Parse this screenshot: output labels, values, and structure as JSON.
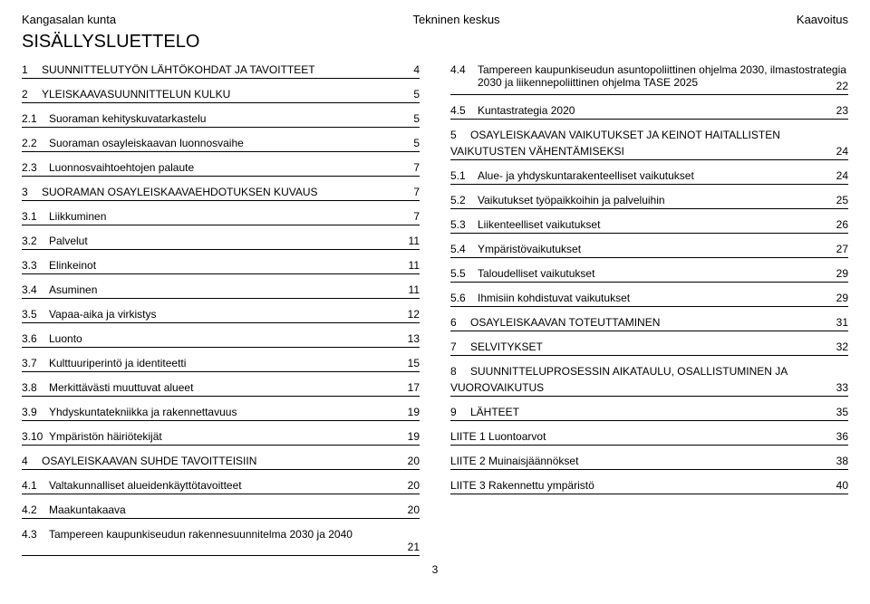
{
  "header": {
    "left": "Kangasalan kunta",
    "center": "Tekninen keskus",
    "right": "Kaavoitus"
  },
  "title": "SISÄLLYSLUETTELO",
  "page_number": "3",
  "left": [
    {
      "n": "1",
      "label": "SUUNNITTELUTYÖN LÄHTÖKOHDAT JA TAVOITTEET",
      "p": "4"
    },
    {
      "n": "2",
      "label": "YLEISKAAVASUUNNITTELUN KULKU",
      "p": "5"
    },
    {
      "n": "2.1",
      "label": "Suoraman kehityskuvatarkastelu",
      "p": "5",
      "sub": true
    },
    {
      "n": "2.2",
      "label": "Suoraman osayleiskaavan luonnosvaihe",
      "p": "5",
      "sub": true
    },
    {
      "n": "2.3",
      "label": "Luonnosvaihtoehtojen palaute",
      "p": "7",
      "sub": true
    },
    {
      "n": "3",
      "label": "SUORAMAN OSAYLEISKAAVAEHDOTUKSEN KUVAUS",
      "p": "7"
    },
    {
      "n": "3.1",
      "label": "Liikkuminen",
      "p": "7",
      "sub": true
    },
    {
      "n": "3.2",
      "label": "Palvelut",
      "p": "11",
      "sub": true
    },
    {
      "n": "3.3",
      "label": "Elinkeinot",
      "p": "11",
      "sub": true
    },
    {
      "n": "3.4",
      "label": "Asuminen",
      "p": "11",
      "sub": true
    },
    {
      "n": "3.5",
      "label": "Vapaa-aika ja virkistys",
      "p": "12",
      "sub": true
    },
    {
      "n": "3.6",
      "label": "Luonto",
      "p": "13",
      "sub": true
    },
    {
      "n": "3.7",
      "label": "Kulttuuriperintö ja identiteetti",
      "p": "15",
      "sub": true
    },
    {
      "n": "3.8",
      "label": "Merkittävästi muuttuvat alueet",
      "p": "17",
      "sub": true
    },
    {
      "n": "3.9",
      "label": "Yhdyskuntatekniikka ja rakennettavuus",
      "p": "19",
      "sub": true
    },
    {
      "n": "3.10",
      "label": "Ympäristön häiriötekijät",
      "p": "19",
      "sub": true
    },
    {
      "n": "4",
      "label": "OSAYLEISKAAVAN SUHDE TAVOITTEISIIN",
      "p": "20"
    },
    {
      "n": "4.1",
      "label": "Valtakunnalliset alueidenkäyttötavoitteet",
      "p": "20",
      "sub": true
    },
    {
      "n": "4.2",
      "label": "Maakuntakaava",
      "p": "20",
      "sub": true
    }
  ],
  "left_wrap": {
    "n": "4.3",
    "label": "Tampereen kaupunkiseudun rakennesuunnitelma 2030 ja 2040",
    "p": "21"
  },
  "right_wrap1": {
    "n": "4.4",
    "label": "Tampereen kaupunkiseudun asuntopoliittinen ohjelma 2030, ilmastostrategia 2030 ja liikennepoliittinen ohjelma TASE 2025",
    "p": "22"
  },
  "right": [
    {
      "n": "4.5",
      "label": "Kuntastrategia 2020",
      "p": "23",
      "sub": true
    }
  ],
  "right_wrap2": {
    "n": "5",
    "label1": "OSAYLEISKAAVAN VAIKUTUKSET JA KEINOT HAITALLISTEN",
    "label2": "VAIKUTUSTEN VÄHENTÄMISEKSI",
    "p": "24"
  },
  "right2": [
    {
      "n": "5.1",
      "label": "Alue- ja yhdyskuntarakenteelliset vaikutukset",
      "p": "24",
      "sub": true
    },
    {
      "n": "5.2",
      "label": "Vaikutukset työpaikkoihin ja palveluihin",
      "p": "25",
      "sub": true
    },
    {
      "n": "5.3",
      "label": "Liikenteelliset vaikutukset",
      "p": "26",
      "sub": true
    },
    {
      "n": "5.4",
      "label": "Ympäristövaikutukset",
      "p": "27",
      "sub": true
    },
    {
      "n": "5.5",
      "label": "Taloudelliset vaikutukset",
      "p": "29",
      "sub": true
    },
    {
      "n": "5.6",
      "label": "Ihmisiin kohdistuvat vaikutukset",
      "p": "29",
      "sub": true
    },
    {
      "n": "6",
      "label": "OSAYLEISKAAVAN TOTEUTTAMINEN",
      "p": "31"
    },
    {
      "n": "7",
      "label": "SELVITYKSET",
      "p": "32"
    }
  ],
  "right_wrap3": {
    "n": "8",
    "label1": "SUUNNITTELUPROSESSIN AIKATAULU, OSALLISTUMINEN JA",
    "label2": "VUOROVAIKUTUS",
    "p": "33"
  },
  "right3": [
    {
      "n": "9",
      "label": "LÄHTEET",
      "p": "35"
    },
    {
      "n": "",
      "label": "LIITE 1 Luontoarvot",
      "p": "36",
      "flat": true
    },
    {
      "n": "",
      "label": "LIITE 2 Muinaisjäännökset",
      "p": "38",
      "flat": true
    },
    {
      "n": "",
      "label": "LIITE 3 Rakennettu ympäristö",
      "p": "40",
      "flat": true
    }
  ]
}
